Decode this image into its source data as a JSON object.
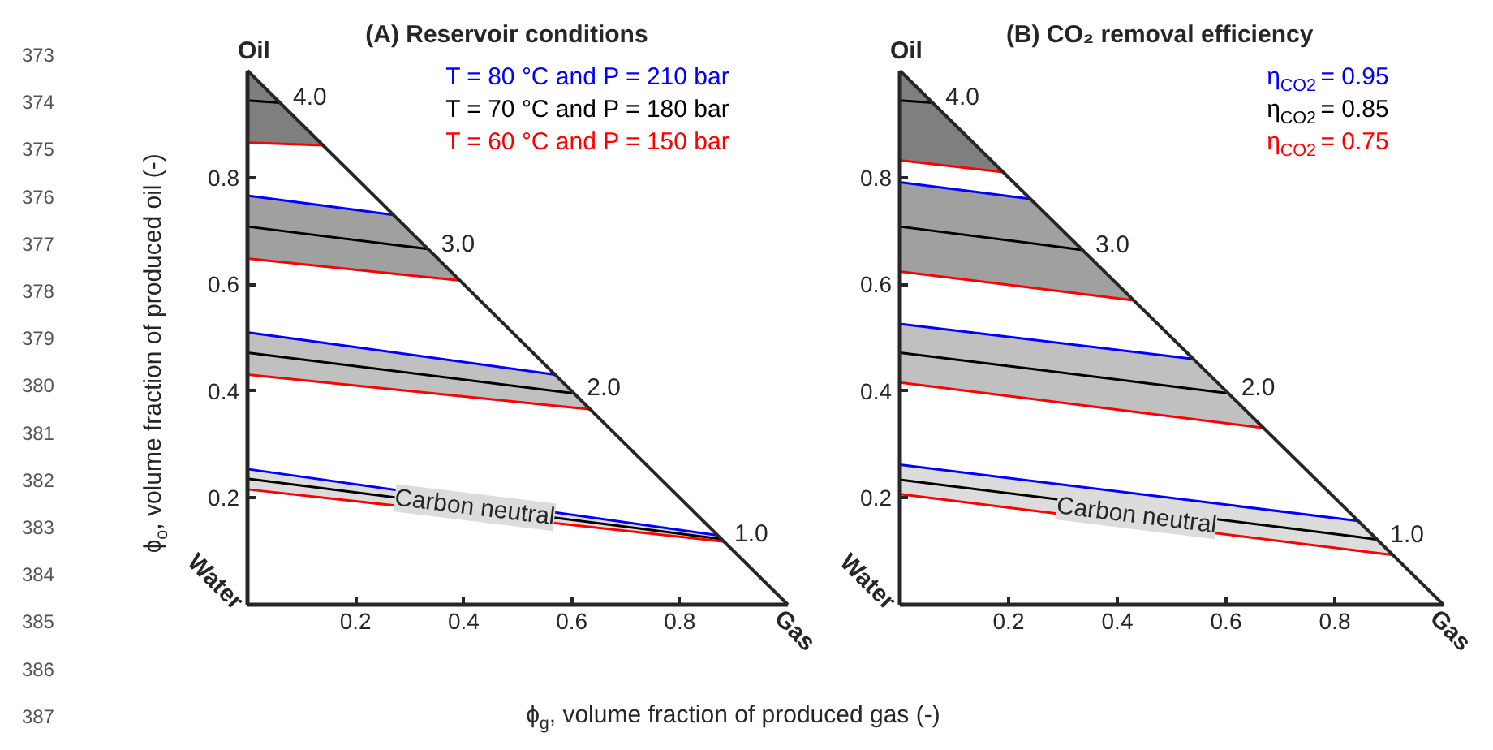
{
  "chart_data": [
    {
      "type": "line",
      "title": "(A) Reservoir conditions",
      "xlabel": "ϕ$_{g}$, volume fraction of produced gas (-)",
      "ylabel": "ϕ$_{o}$, volume fraction of produced oil (-)",
      "xlim": [
        0,
        1
      ],
      "ylim": [
        0,
        1
      ],
      "xticks": [
        0.2,
        0.4,
        0.6,
        0.8
      ],
      "yticks": [
        0.2,
        0.4,
        0.6,
        0.8
      ],
      "grid": false,
      "legend": "top right",
      "series": [
        {
          "name": "T = 80 °C and P = 210 bar",
          "color": "#0000ff",
          "x": [
            0,
            0.27
          ],
          "values": [
            0.766,
            0.73
          ]
        },
        {
          "color": "#0000ff",
          "x": [
            0,
            0.569
          ],
          "values": [
            0.51,
            0.431
          ]
        },
        {
          "color": "#0000ff",
          "x": [
            0,
            0.87
          ],
          "values": [
            0.254,
            0.13
          ]
        },
        {
          "name": "T = 70 °C and P = 180 bar",
          "color": "#000000",
          "x": [
            0,
            0.06,
            0.14
          ],
          "values": [
            0.944,
            0.94,
            null
          ],
          "upper": [
            1,
            0.94,
            0.86
          ],
          "lower": [
            0.865,
            0.862,
            0.86
          ]
        },
        {
          "color": "#000000",
          "x": [
            0,
            0.27,
            0.334,
            0.393
          ],
          "values": [
            0.708,
            0.674,
            0.666,
            null
          ],
          "upper": [
            0.766,
            0.73,
            0.666,
            0.607
          ],
          "lower": [
            0.648,
            0.62,
            0.613,
            0.607
          ]
        },
        {
          "color": "#000000",
          "x": [
            0,
            0.569,
            0.604,
            0.634
          ],
          "values": [
            0.472,
            0.4,
            0.396,
            null
          ],
          "upper": [
            0.51,
            0.431,
            0.396,
            0.366
          ],
          "lower": [
            0.431,
            0.373,
            0.369,
            0.366
          ]
        },
        {
          "color": "#000000",
          "x": [
            0,
            0.87,
            0.877,
            0.882
          ],
          "values": [
            0.236,
            0.124,
            0.123,
            null
          ],
          "upper": [
            0.254,
            0.13,
            0.123,
            0.118
          ],
          "lower": [
            0.216,
            0.119,
            0.118,
            0.118
          ]
        },
        {
          "name": "T = 60 °C and P = 150 bar",
          "color": "#ff0000",
          "x": [
            0,
            0.14
          ],
          "values": [
            0.865,
            0.86
          ]
        },
        {
          "color": "#ff0000",
          "x": [
            0,
            0.393
          ],
          "values": [
            0.648,
            0.607
          ]
        },
        {
          "color": "#ff0000",
          "x": [
            0,
            0.634
          ],
          "values": [
            0.431,
            0.366
          ]
        },
        {
          "color": "#ff0000",
          "x": [
            0,
            0.882
          ],
          "values": [
            0.216,
            0.118
          ]
        },
        {
          "color": "#262626",
          "x": [
            0,
            1
          ],
          "values": [
            1,
            0
          ]
        }
      ],
      "annotations": [
        "373\n374\n375\n376\n377\n378\n379\n380\n381\n382\n383\n384\n385\n386\n387",
        {
          "text": "Oil",
          "x": 0,
          "y": 1
        },
        "Water",
        {
          "text": "Gas",
          "x": 1,
          "y": 0
        },
        {
          "text": "4.0",
          "x": 0.06,
          "y": 0.94
        },
        {
          "text": "3.0",
          "x": 0.334,
          "y": 0.666
        },
        {
          "text": "2.0",
          "x": 0.604,
          "y": 0.396
        },
        {
          "text": "1.0",
          "x": 0.877,
          "y": 0.123
        },
        {
          "text": "Carbon neutral",
          "x": 0.435,
          "y": 0.18
        }
      ]
    },
    {
      "type": "line",
      "title": "(B) CO₂ removal efficiency",
      "xlim": [
        0,
        1
      ],
      "ylim": [
        0,
        1
      ],
      "xticks": [
        0.2,
        0.4,
        0.6,
        0.8
      ],
      "yticks": [
        0.2,
        0.4,
        0.6,
        0.8
      ],
      "grid": false,
      "legend": "top right",
      "series": [
        {
          "name": "η$_{CO2}$ = 0.95",
          "color": "#0000ff",
          "x": [
            0,
            0.24
          ],
          "values": [
            0.791,
            0.76
          ]
        },
        {
          "color": "#0000ff",
          "x": [
            0,
            0.54
          ],
          "values": [
            0.526,
            0.46
          ]
        },
        {
          "color": "#0000ff",
          "x": [
            0,
            0.843
          ],
          "values": [
            0.262,
            0.157
          ]
        },
        {
          "name": "η$_{CO2}$ = 0.85",
          "color": "#000000",
          "x": [
            0,
            0.06,
            0.19
          ],
          "values": [
            0.944,
            0.94,
            null
          ],
          "upper": [
            1,
            0.94,
            0.81
          ],
          "lower": [
            0.832,
            0.825,
            0.81
          ]
        },
        {
          "color": "#000000",
          "x": [
            0,
            0.24,
            0.336,
            0.43
          ],
          "values": [
            0.708,
            0.677,
            0.664,
            null
          ],
          "upper": [
            0.791,
            0.76,
            0.664,
            0.57
          ],
          "lower": [
            0.624,
            0.594,
            0.582,
            0.57
          ]
        },
        {
          "color": "#000000",
          "x": [
            0,
            0.54,
            0.604,
            0.669
          ],
          "values": [
            0.472,
            0.404,
            0.396,
            null
          ],
          "upper": [
            0.526,
            0.46,
            0.396,
            0.331
          ],
          "lower": [
            0.416,
            0.347,
            0.339,
            0.331
          ]
        },
        {
          "color": "#000000",
          "x": [
            0,
            0.843,
            0.878,
            0.907
          ],
          "values": [
            0.234,
            0.127,
            0.122,
            null
          ],
          "upper": [
            0.262,
            0.157,
            0.122,
            0.093
          ],
          "lower": [
            0.207,
            0.101,
            0.097,
            0.093
          ]
        },
        {
          "name": "η$_{CO2}$ = 0.75",
          "color": "#ff0000",
          "x": [
            0,
            0.19
          ],
          "values": [
            0.832,
            0.81
          ]
        },
        {
          "color": "#ff0000",
          "x": [
            0,
            0.43
          ],
          "values": [
            0.624,
            0.57
          ]
        },
        {
          "color": "#ff0000",
          "x": [
            0,
            0.669
          ],
          "values": [
            0.416,
            0.331
          ]
        },
        {
          "color": "#ff0000",
          "x": [
            0,
            0.907
          ],
          "values": [
            0.207,
            0.093
          ]
        },
        {
          "color": "#262626",
          "x": [
            0,
            1
          ],
          "values": [
            1,
            0
          ]
        }
      ],
      "annotations": [
        {
          "text": "Oil",
          "x": 0,
          "y": 1
        },
        "Water",
        {
          "text": "Gas",
          "x": 1,
          "y": 0
        },
        {
          "text": "4.0",
          "x": 0.06,
          "y": 0.94
        },
        {
          "text": "3.0",
          "x": 0.336,
          "y": 0.664
        },
        {
          "text": "2.0",
          "x": 0.604,
          "y": 0.396
        },
        {
          "text": "1.0",
          "x": 0.878,
          "y": 0.122
        },
        {
          "text": "Carbon neutral",
          "x": 0.45,
          "y": 0.165
        }
      ]
    }
  ]
}
